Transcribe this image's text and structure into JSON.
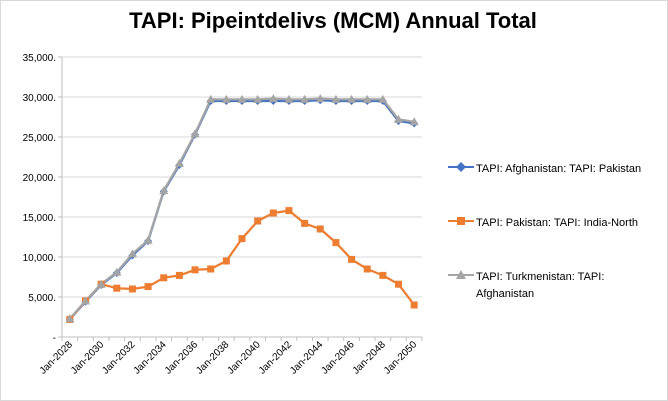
{
  "chart_data": {
    "type": "line",
    "title": "TAPI: Pipeintdelivs (MCM) Annual Total",
    "xlabel": "",
    "ylabel": "",
    "x": [
      "Jan-2028",
      "Jan-2029",
      "Jan-2030",
      "Jan-2031",
      "Jan-2032",
      "Jan-2033",
      "Jan-2034",
      "Jan-2035",
      "Jan-2036",
      "Jan-2037",
      "Jan-2038",
      "Jan-2039",
      "Jan-2040",
      "Jan-2041",
      "Jan-2042",
      "Jan-2043",
      "Jan-2044",
      "Jan-2045",
      "Jan-2046",
      "Jan-2047",
      "Jan-2048",
      "Jan-2049",
      "Jan-2050"
    ],
    "x_tick_labels": [
      "Jan-2028",
      "Jan-2030",
      "Jan-2032",
      "Jan-2034",
      "Jan-2036",
      "Jan-2038",
      "Jan-2040",
      "Jan-2042",
      "Jan-2044",
      "Jan-2046",
      "Jan-2048",
      "Jan-2050"
    ],
    "y_tick_labels": [
      "-",
      "5,000.",
      "10,000.",
      "15,000.",
      "20,000.",
      "25,000.",
      "30,000.",
      "35,000."
    ],
    "ylim": [
      0,
      35000
    ],
    "grid": true,
    "legend_position": "right",
    "series": [
      {
        "name": "TAPI: Afghanistan: TAPI: Pakistan",
        "color": "#4472c4",
        "marker": "diamond",
        "values": [
          2200,
          4400,
          6500,
          8000,
          10200,
          12000,
          18200,
          21500,
          25300,
          29500,
          29500,
          29500,
          29500,
          29500,
          29500,
          29500,
          29600,
          29500,
          29500,
          29500,
          29500,
          27000,
          26700
        ]
      },
      {
        "name": "TAPI: Pakistan: TAPI: India-North",
        "color": "#ed7d31",
        "marker": "square",
        "values": [
          2200,
          4500,
          6600,
          6100,
          6000,
          6300,
          7400,
          7700,
          8400,
          8500,
          9500,
          12300,
          14500,
          15500,
          15800,
          14200,
          13500,
          11800,
          9700,
          8500,
          7700,
          6600,
          4000
        ]
      },
      {
        "name": "TAPI: Turkmenistan: TAPI: Afghanistan",
        "color": "#a5a5a5",
        "marker": "triangle",
        "values": [
          2300,
          4500,
          6600,
          8100,
          10400,
          12100,
          18300,
          21700,
          25400,
          29700,
          29700,
          29700,
          29700,
          29800,
          29700,
          29700,
          29800,
          29700,
          29700,
          29700,
          29700,
          27200,
          26900
        ]
      }
    ]
  }
}
